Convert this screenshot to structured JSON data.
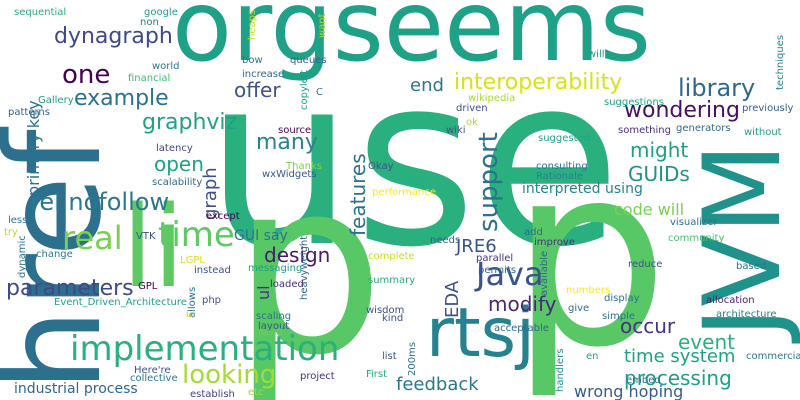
{
  "colors": {
    "background": "#ffffff",
    "palette": [
      "#440154",
      "#46327e",
      "#365c8d",
      "#277f8e",
      "#1fa187",
      "#4ac16d",
      "#a0da39",
      "#fde725"
    ]
  },
  "words": [
    {
      "text": "use",
      "color": "#2ab07f"
    },
    {
      "text": "p",
      "color": "#58c765"
    },
    {
      "text": "orgseems",
      "color": "#1fa187"
    },
    {
      "text": "href",
      "color": "#2d708e"
    },
    {
      "text": "JVM",
      "color": "#20928c"
    },
    {
      "text": "li",
      "color": "#5ec962"
    },
    {
      "text": "p",
      "color": "#58c765"
    },
    {
      "text": "rtsj",
      "color": "#26828e"
    },
    {
      "text": "implementation",
      "color": "#2ab07f"
    },
    {
      "text": "Java",
      "color": "#3b528b"
    },
    {
      "text": "time",
      "color": "#5ec962"
    },
    {
      "text": "real",
      "color": "#7ad151"
    },
    {
      "text": "example",
      "color": "#2c728e"
    },
    {
      "text": "one",
      "color": "#440154"
    },
    {
      "text": "library",
      "color": "#31688e"
    },
    {
      "text": "looking",
      "color": "#a5db36"
    },
    {
      "text": "parameters",
      "color": "#3e4989"
    },
    {
      "text": "rel nofollow",
      "color": "#2a788e"
    },
    {
      "text": "support",
      "color": "#2c728e"
    },
    {
      "text": "features",
      "color": "#2c728e"
    },
    {
      "text": "graph",
      "color": "#3b528b"
    },
    {
      "text": "dynagraph",
      "color": "#3e4989"
    },
    {
      "text": "graphviz",
      "color": "#1fa187"
    },
    {
      "text": "wondering",
      "color": "#471063"
    },
    {
      "text": "interoperability",
      "color": "#d8e219"
    },
    {
      "text": "end",
      "color": "#2a788e"
    },
    {
      "text": "GUIDs",
      "color": "#21918c"
    },
    {
      "text": "might",
      "color": "#1f9e89"
    },
    {
      "text": "many",
      "color": "#25848e"
    },
    {
      "text": "offer",
      "color": "#3b528b"
    },
    {
      "text": "open",
      "color": "#1fa187"
    },
    {
      "text": "modify",
      "color": "#482878"
    },
    {
      "text": "design",
      "color": "#481a6c"
    },
    {
      "text": "processing",
      "color": "#1f9e89"
    },
    {
      "text": "feedback",
      "color": "#2a788e"
    },
    {
      "text": "event",
      "color": "#2ab07f"
    },
    {
      "text": "occur",
      "color": "#46327e"
    },
    {
      "text": "time system",
      "color": "#1fa187"
    },
    {
      "text": "EDA",
      "color": "#3b528b"
    },
    {
      "text": "JRE6",
      "color": "#3b528b"
    },
    {
      "text": "code will",
      "color": "#7ad151"
    },
    {
      "text": "interpreted using",
      "color": "#26828e"
    },
    {
      "text": "wrong hoping",
      "color": "#365c8d"
    },
    {
      "text": "industrial process",
      "color": "#31688e"
    },
    {
      "text": "primary key",
      "color": "#2c728e"
    },
    {
      "text": "ul",
      "color": "#46327e"
    },
    {
      "text": "GUI say",
      "color": "#2c728e"
    },
    {
      "text": "sequential",
      "color": "#27ad81"
    },
    {
      "text": "google",
      "color": "#1f9e89"
    },
    {
      "text": "non",
      "color": "#2a788e"
    },
    {
      "text": "heaps",
      "color": "#c8e020"
    },
    {
      "text": "want",
      "color": "#a5db36"
    },
    {
      "text": "will",
      "color": "#1f9e89"
    },
    {
      "text": "techniques",
      "color": "#25848e"
    },
    {
      "text": "world",
      "color": "#2a788e"
    },
    {
      "text": "financial",
      "color": "#3fbc73"
    },
    {
      "text": "bow",
      "color": "#2a788e"
    },
    {
      "text": "queues",
      "color": "#365c8d"
    },
    {
      "text": "increase",
      "color": "#31688e"
    },
    {
      "text": "copyleft",
      "color": "#1f9e89"
    },
    {
      "text": "C",
      "color": "#2a788e"
    },
    {
      "text": "wikipedia",
      "color": "#a5db36"
    },
    {
      "text": "suggestions",
      "color": "#20a486"
    },
    {
      "text": "previously",
      "color": "#355f8d"
    },
    {
      "text": "driven",
      "color": "#3b528b"
    },
    {
      "text": "Gallery",
      "color": "#1f9e89"
    },
    {
      "text": "patterns",
      "color": "#365c8d"
    },
    {
      "text": "source",
      "color": "#440154"
    },
    {
      "text": "ok",
      "color": "#a5db36"
    },
    {
      "text": "wiki",
      "color": "#3b528b"
    },
    {
      "text": "generators",
      "color": "#31688e"
    },
    {
      "text": "something",
      "color": "#46327e"
    },
    {
      "text": "without",
      "color": "#1f9e89"
    },
    {
      "text": "latency",
      "color": "#414487"
    },
    {
      "text": "suggested",
      "color": "#20a486"
    },
    {
      "text": "scalability",
      "color": "#31688e"
    },
    {
      "text": "Thanks",
      "color": "#7ad151"
    },
    {
      "text": "Okay",
      "color": "#3b528b"
    },
    {
      "text": "consulting",
      "color": "#2a788e"
    },
    {
      "text": "wxWidgets",
      "color": "#365c8d"
    },
    {
      "text": "able",
      "color": "#27ad81"
    },
    {
      "text": "Rationale",
      "color": "#26828e"
    },
    {
      "text": "performance",
      "color": "#fde725"
    },
    {
      "text": "less",
      "color": "#2a788e"
    },
    {
      "text": "except",
      "color": "#440154"
    },
    {
      "text": "try",
      "color": "#b5de2b"
    },
    {
      "text": "dynamic",
      "color": "#2c728e"
    },
    {
      "text": "VTK",
      "color": "#3b528b"
    },
    {
      "text": "add",
      "color": "#31688e"
    },
    {
      "text": "needs",
      "color": "#365c8d"
    },
    {
      "text": "improve",
      "color": "#46327e"
    },
    {
      "text": "visualizer",
      "color": "#2c728e"
    },
    {
      "text": "community",
      "color": "#4ac16d"
    },
    {
      "text": "change",
      "color": "#2a788e"
    },
    {
      "text": "LGPL",
      "color": "#d8e219"
    },
    {
      "text": "instead",
      "color": "#3b528b"
    },
    {
      "text": "messaging",
      "color": "#1fa187"
    },
    {
      "text": "complete",
      "color": "#c8e020"
    },
    {
      "text": "parallel",
      "color": "#46327e"
    },
    {
      "text": "reduce",
      "color": "#3b528b"
    },
    {
      "text": "based",
      "color": "#2c728e"
    },
    {
      "text": "permits",
      "color": "#31688e"
    },
    {
      "text": "available",
      "color": "#31688e"
    },
    {
      "text": "heavyweight",
      "color": "#31688e"
    },
    {
      "text": "GPL",
      "color": "#440154"
    },
    {
      "text": "allows",
      "color": "#2c728e"
    },
    {
      "text": "loaded",
      "color": "#46327e"
    },
    {
      "text": "summary",
      "color": "#2ab07f"
    },
    {
      "text": "numbers",
      "color": "#fde725"
    },
    {
      "text": "Event_Driven_Architecture",
      "color": "#1fa187"
    },
    {
      "text": "php",
      "color": "#3b528b"
    },
    {
      "text": "ul",
      "color": "#d8e219"
    },
    {
      "text": "scaling",
      "color": "#2c728e"
    },
    {
      "text": "wisdom",
      "color": "#3b528b"
    },
    {
      "text": "give",
      "color": "#31688e"
    },
    {
      "text": "display",
      "color": "#2c728e"
    },
    {
      "text": "allocation",
      "color": "#481a6c"
    },
    {
      "text": "architecture",
      "color": "#26828e"
    },
    {
      "text": "layout",
      "color": "#3b528b"
    },
    {
      "text": "dead",
      "color": "#6ece58"
    },
    {
      "text": "kind",
      "color": "#3b528b"
    },
    {
      "text": "simple",
      "color": "#2c728e"
    },
    {
      "text": "acceptable",
      "color": "#31688e"
    },
    {
      "text": "commercial",
      "color": "#2a788e"
    },
    {
      "text": "200ms",
      "color": "#2c728e"
    },
    {
      "text": "list",
      "color": "#3b528b"
    },
    {
      "text": "en",
      "color": "#1f9e89"
    },
    {
      "text": "Here're",
      "color": "#3b528b"
    },
    {
      "text": "collective",
      "color": "#2a788e"
    },
    {
      "text": "project",
      "color": "#46327e"
    },
    {
      "text": "First",
      "color": "#27ad81"
    },
    {
      "text": "handlers",
      "color": "#21918c"
    },
    {
      "text": "embed",
      "color": "#2c728e"
    },
    {
      "text": "establish",
      "color": "#414487"
    },
    {
      "text": "etc",
      "color": "#a5db36"
    }
  ]
}
